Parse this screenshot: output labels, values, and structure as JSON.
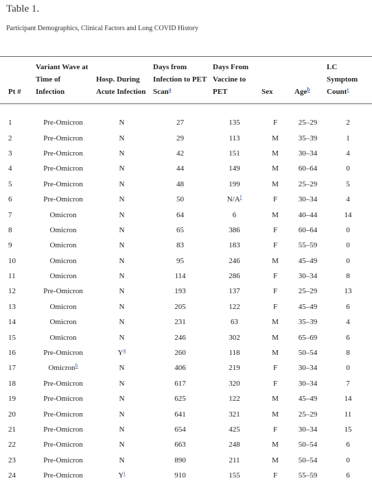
{
  "title": "Table 1.",
  "subtitle": "Participant Demographics, Clinical Factors and Long COVID History",
  "table": {
    "columns": [
      {
        "text": "Pt #"
      },
      {
        "text": "Variant Wave at Time of Infection"
      },
      {
        "text": "Hosp. During Acute Infection"
      },
      {
        "text": "Days from Infection to PET Scan",
        "sup": "a"
      },
      {
        "text": "Days From Vaccine to PET"
      },
      {
        "text": "Sex"
      },
      {
        "text": "Age",
        "sup": "b"
      },
      {
        "text": "LC Symptom Count",
        "sup": "c"
      }
    ],
    "rows": [
      [
        1,
        "Pre-Omicron",
        "N",
        27,
        135,
        "F",
        "25–29",
        2
      ],
      [
        2,
        "Pre-Omicron",
        "N",
        29,
        113,
        "M",
        "35–39",
        1
      ],
      [
        3,
        "Pre-Omicron",
        "N",
        42,
        151,
        "M",
        "30–34",
        4
      ],
      [
        4,
        "Pre-Omicron",
        "N",
        44,
        149,
        "M",
        "60–64",
        0
      ],
      [
        5,
        "Pre-Omicron",
        "N",
        48,
        199,
        "M",
        "25–29",
        5
      ],
      [
        6,
        "Pre-Omicron",
        "N",
        50,
        {
          "text": "N/A",
          "sup": "f"
        },
        "F",
        "30–34",
        4
      ],
      [
        7,
        "Omicron",
        "N",
        64,
        6,
        "M",
        "40–44",
        14
      ],
      [
        8,
        "Omicron",
        "N",
        65,
        386,
        "F",
        "60–64",
        0
      ],
      [
        9,
        "Omicron",
        "N",
        83,
        183,
        "F",
        "55–59",
        0
      ],
      [
        10,
        "Omicron",
        "N",
        95,
        246,
        "M",
        "45–49",
        0
      ],
      [
        11,
        "Omicron",
        "N",
        114,
        286,
        "F",
        "30–34",
        8
      ],
      [
        12,
        "Pre-Omicron",
        "N",
        193,
        137,
        "F",
        "25–29",
        13
      ],
      [
        13,
        "Omicron",
        "N",
        205,
        122,
        "F",
        "45–49",
        6
      ],
      [
        14,
        "Omicron",
        "N",
        231,
        63,
        "M",
        "35–39",
        4
      ],
      [
        15,
        "Omicron",
        "N",
        246,
        302,
        "M",
        "65–69",
        6
      ],
      [
        16,
        "Pre-Omicron",
        {
          "text": "Y",
          "sup": "g"
        },
        260,
        118,
        "M",
        "50–54",
        8
      ],
      [
        17,
        {
          "text": "Omicron",
          "sup": "h"
        },
        "N",
        406,
        219,
        "F",
        "30–34",
        0
      ],
      [
        18,
        "Pre-Omicron",
        "N",
        617,
        320,
        "F",
        "30–34",
        7
      ],
      [
        19,
        "Pre-Omicron",
        "N",
        625,
        122,
        "M",
        "45–49",
        14
      ],
      [
        20,
        "Pre-Omicron",
        "N",
        641,
        321,
        "M",
        "25–29",
        11
      ],
      [
        21,
        "Pre-Omicron",
        "N",
        654,
        425,
        "F",
        "30–34",
        15
      ],
      [
        22,
        "Pre-Omicron",
        "N",
        663,
        248,
        "M",
        "50–54",
        6
      ],
      [
        23,
        "Pre-Omicron",
        "N",
        890,
        211,
        "M",
        "50–54",
        0
      ],
      [
        24,
        "Pre-Omicron",
        {
          "text": "Y",
          "sup": "i"
        },
        910,
        155,
        "F",
        "55–59",
        6
      ]
    ]
  }
}
